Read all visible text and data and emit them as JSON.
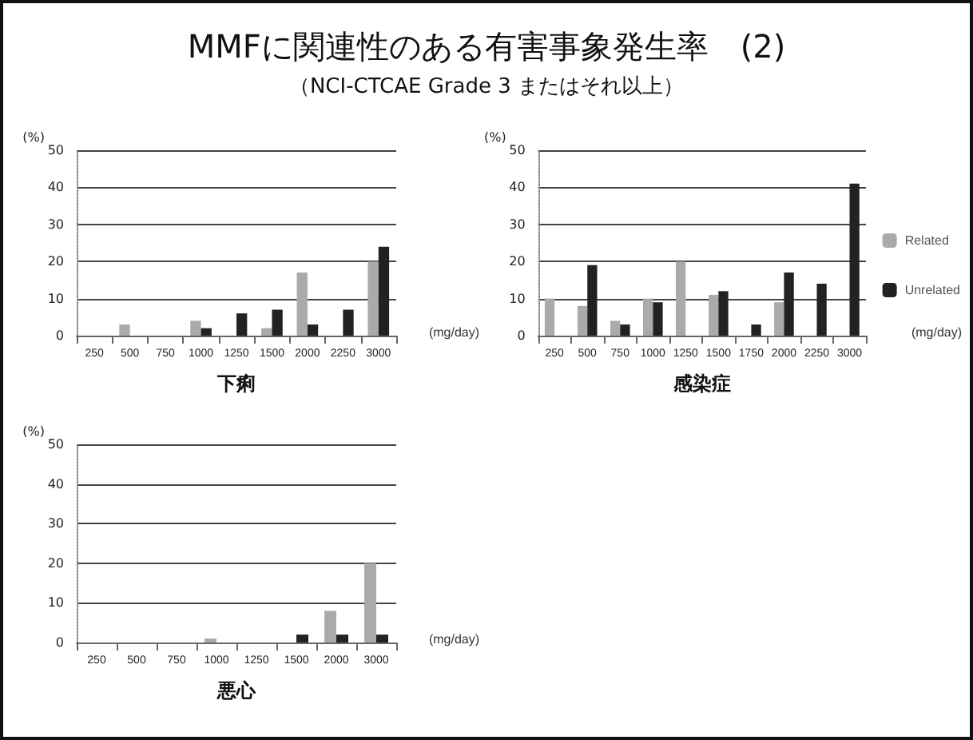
{
  "chart_data": [
    {
      "type": "bar",
      "title": "MMFに関連性のある有害事象発生率　(2)",
      "subtitle": "（NCI-CTCAE Grade 3 またはそれ以上）",
      "xlabel": "下痢",
      "ylabel": "(%)",
      "annotations": [
        "(mg/day)"
      ],
      "categories": [
        "250",
        "500",
        "750",
        "1000",
        "1250",
        "1500",
        "2000",
        "2250",
        "3000"
      ],
      "series": [
        {
          "color": "#aaaaaa",
          "values": [
            0,
            3,
            0,
            4,
            0,
            2,
            17,
            0,
            20
          ]
        },
        {
          "color": "#222222",
          "values": [
            0,
            0,
            0,
            2,
            6,
            7,
            3,
            7,
            24
          ]
        }
      ],
      "ylim": [
        0,
        50
      ],
      "yticks": [
        0,
        10,
        20,
        30,
        40,
        50
      ],
      "grid": "y",
      "legend": false
    },
    {
      "type": "bar",
      "xlabel": "感染症",
      "ylabel": "(%)",
      "annotations": [
        "(mg/day)"
      ],
      "categories": [
        "250",
        "500",
        "750",
        "1000",
        "1250",
        "1500",
        "1750",
        "2000",
        "2250",
        "3000"
      ],
      "series": [
        {
          "name": "Related",
          "color": "#aaaaaa",
          "values": [
            10,
            8,
            4,
            10,
            20,
            11,
            0,
            9,
            0,
            0
          ]
        },
        {
          "name": "Unrelated",
          "color": "#222222",
          "values": [
            0,
            19,
            3,
            9,
            0,
            12,
            3,
            17,
            14,
            41
          ]
        }
      ],
      "ylim": [
        0,
        50
      ],
      "yticks": [
        0,
        10,
        20,
        30,
        40,
        50
      ],
      "grid": "y",
      "legend": "right"
    },
    {
      "type": "bar",
      "xlabel": "悪心",
      "ylabel": "(%)",
      "annotations": [
        "(mg/day)"
      ],
      "categories": [
        "250",
        "500",
        "750",
        "1000",
        "1250",
        "1500",
        "2000",
        "3000"
      ],
      "series": [
        {
          "color": "#aaaaaa",
          "values": [
            0,
            0,
            0,
            1,
            0,
            0,
            8,
            20
          ]
        },
        {
          "color": "#222222",
          "values": [
            0,
            0,
            0,
            0,
            0,
            2,
            2,
            2
          ]
        }
      ],
      "ylim": [
        0,
        50
      ],
      "yticks": [
        0,
        10,
        20,
        30,
        40,
        50
      ],
      "grid": "y",
      "legend": false
    }
  ]
}
